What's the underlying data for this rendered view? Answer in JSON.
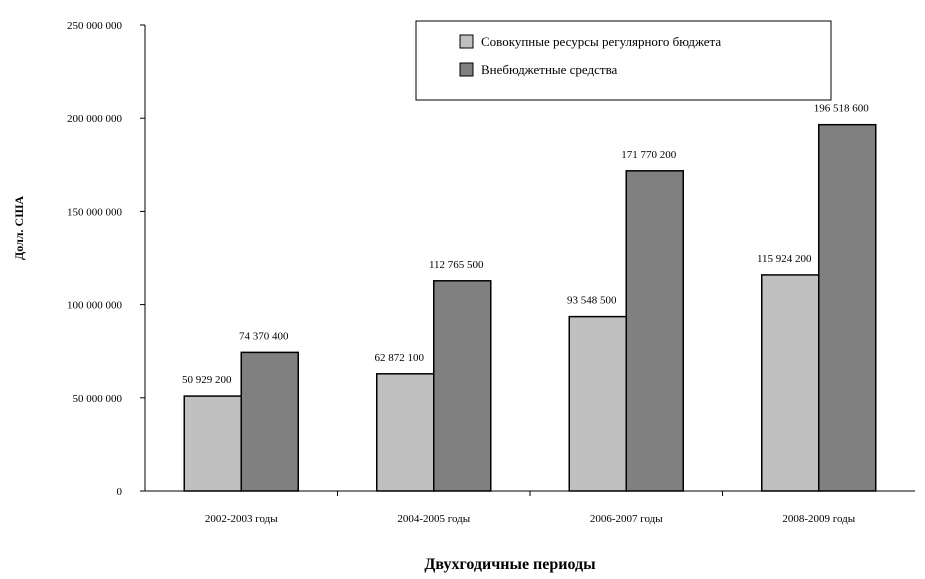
{
  "chart_data": {
    "type": "bar",
    "categories": [
      "2002-2003 годы",
      "2004-2005 годы",
      "2006-2007 годы",
      "2008-2009 годы"
    ],
    "series": [
      {
        "name": "Совокупные ресурсы регулярного бюджета",
        "color": "#c0c0c0",
        "values": [
          50929200,
          62872100,
          93548500,
          115924200
        ],
        "labels": [
          "50 929 200",
          "62 872 100",
          "93 548 500",
          "115 924 200"
        ]
      },
      {
        "name": "Внебюджетные средства",
        "color": "#808080",
        "values": [
          74370400,
          112765500,
          171770200,
          196518600
        ],
        "labels": [
          "74 370 400",
          "112 765 500",
          "171 770 200",
          "196 518 600"
        ]
      }
    ],
    "yticks": [
      0,
      50000000,
      100000000,
      150000000,
      200000000,
      250000000
    ],
    "ytick_labels": [
      "0",
      "50 000 000",
      "100 000 000",
      "150 000 000",
      "200 000 000",
      "250 000 000"
    ],
    "ylim": [
      0,
      250000000
    ],
    "ylabel": "Долл. США",
    "xlabel": "Двухгодичные периоды",
    "legend_position": "top-right",
    "grid": false
  }
}
